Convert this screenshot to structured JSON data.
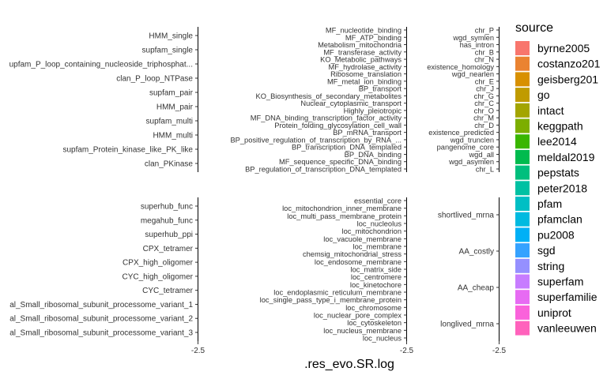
{
  "chart_data": {
    "type": "scatter",
    "xlabel": ".res_evo.SR.log",
    "x_tick_label": "-2.5",
    "legend": {
      "title": "source",
      "position": "right",
      "entries": [
        {
          "name": "byrne2005",
          "color": "#F8766D"
        },
        {
          "name": "costanzo201",
          "color": "#EA8331"
        },
        {
          "name": "geisberg201",
          "color": "#D89000"
        },
        {
          "name": "go",
          "color": "#C09B00"
        },
        {
          "name": "intact",
          "color": "#A3A500"
        },
        {
          "name": "keggpath",
          "color": "#7CAE00"
        },
        {
          "name": "lee2014",
          "color": "#39B600"
        },
        {
          "name": "meldal2019",
          "color": "#00BB4E"
        },
        {
          "name": "pepstats",
          "color": "#00BF7D"
        },
        {
          "name": "peter2018",
          "color": "#00C1A3"
        },
        {
          "name": "pfam",
          "color": "#00BFC4"
        },
        {
          "name": "pfamclan",
          "color": "#00BAE0"
        },
        {
          "name": "pu2008",
          "color": "#00B0F6"
        },
        {
          "name": "sgd",
          "color": "#35A2FF"
        },
        {
          "name": "string",
          "color": "#9590FF"
        },
        {
          "name": "superfam",
          "color": "#C77CFF"
        },
        {
          "name": "superfamilie",
          "color": "#E76BF3"
        },
        {
          "name": "uniprot",
          "color": "#FA62DB"
        },
        {
          "name": "vanleeuwen",
          "color": "#FF62BC"
        }
      ]
    },
    "panels": [
      {
        "row": 1,
        "col": 1,
        "labels": [
          "HMM_single",
          "supfam_single",
          "upfam_P_loop_containing_nucleoside_triphosphat...",
          "clan_P_loop_NTPase",
          "supfam_pair",
          "HMM_pair",
          "supfam_multi",
          "HMM_multi",
          "supfam_Protein_kinase_like_PK_like",
          "clan_PKinase"
        ]
      },
      {
        "row": 1,
        "col": 2,
        "labels": [
          "MF_nucleotide_binding",
          "MF_ATP_binding",
          "Metabolism_mitochondria",
          "MF_transferase_activity",
          "KO_Metabolic_pathways",
          "MF_hydrolase_activity",
          "Ribosome_translation",
          "MF_metal_ion_binding",
          "BP_transport",
          "KO_Biosynthesis_of_secondary_metabolites",
          "Nuclear_cytoplasmic_transport",
          "Highly_pleiotropic",
          "MF_DNA_binding_transcription_factor_activity",
          "Protein_folding_glycosylation_cell_wall",
          "BP_mRNA_transport",
          "BP_positive_regulation_of_transcription_by_RNA_...",
          "BP_transcription_DNA_templated",
          "BP_DNA_binding",
          "MF_sequence_specific_DNA_binding",
          "BP_regulation_of_transcription_DNA_templated"
        ]
      },
      {
        "row": 1,
        "col": 3,
        "labels": [
          "chr_P",
          "wgd_symlen",
          "has_intron",
          "chr_B",
          "chr_N",
          "existence_homology",
          "wgd_nearlen",
          "chr_E",
          "chr_J",
          "chr_G",
          "chr_C",
          "chr_O",
          "chr_M",
          "chr_D",
          "existence_predicted",
          "wgd_trunclen",
          "pangenome_core",
          "wgd_all",
          "wgd_asymlen",
          "chr_L"
        ]
      },
      {
        "row": 2,
        "col": 1,
        "labels": [
          "superhub_func",
          "megahub_func",
          "superhub_ppi",
          "CPX_tetramer",
          "CPX_high_oligomer",
          "CYC_high_oligomer",
          "CYC_tetramer",
          "al_Small_ribosomal_subunit_processome_variant_1",
          "al_Small_ribosomal_subunit_processome_variant_2",
          "al_Small_ribosomal_subunit_processome_variant_3"
        ]
      },
      {
        "row": 2,
        "col": 2,
        "labels": [
          "essential_core",
          "loc_mitochondrion_inner_membrane",
          "loc_multi_pass_membrane_protein",
          "loc_nucleolus",
          "loc_mitochondrion",
          "loc_vacuole_membrane",
          "loc_membrane",
          "chemsig_mitochondrial_stress",
          "loc_endosome_membrane",
          "loc_matrix_side",
          "loc_centromere",
          "loc_kinetochore",
          "loc_endoplasmic_reticulum_membrane",
          "loc_single_pass_type_i_membrane_protein",
          "loc_chromosome",
          "loc_nuclear_pore_complex",
          "loc_cytoskeleton",
          "loc_nucleus_membrane",
          "loc_nucleus"
        ]
      },
      {
        "row": 2,
        "col": 3,
        "labels": [
          "shortlived_mrna",
          "AA_costly",
          "AA_cheap",
          "longlived_mrna"
        ]
      }
    ]
  }
}
